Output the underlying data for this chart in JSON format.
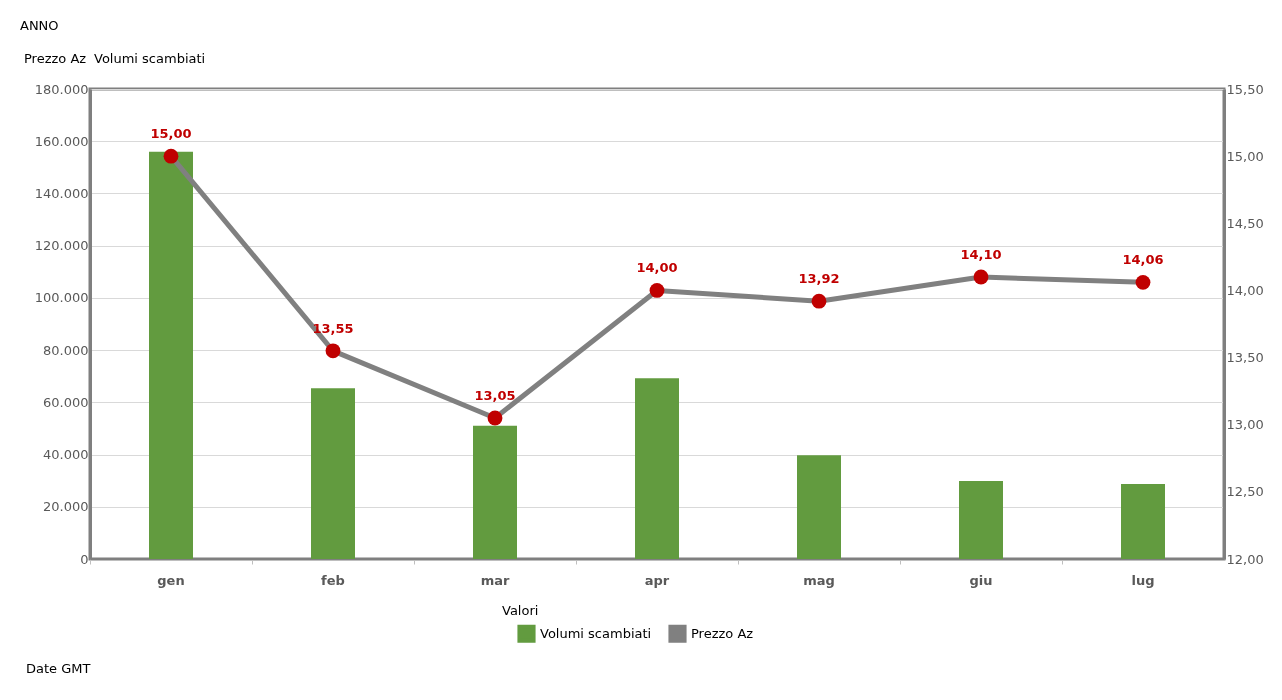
{
  "chart_data": {
    "type": "bar",
    "categories": [
      "gen",
      "feb",
      "mar",
      "apr",
      "mag",
      "giu",
      "lug"
    ],
    "series": [
      {
        "name": "Volumi scambiati",
        "color": "#629b3f",
        "values": [
          156000,
          65400,
          51000,
          69200,
          39700,
          29900,
          28700
        ]
      },
      {
        "name": "Prezzo Az",
        "type": "line",
        "axis": "y2",
        "color": "#808080",
        "colors": [
          "#c00000",
          "#c00000",
          "#c00000",
          "#c00000",
          "#c00000",
          "#c00000",
          "#c00000"
        ],
        "values": [
          15.0,
          13.55,
          13.05,
          14.0,
          13.92,
          14.1,
          14.06
        ],
        "value_labels": [
          "15,00",
          "13,55",
          "13,05",
          "14,00",
          "13,92",
          "14,10",
          "14,06"
        ]
      }
    ],
    "ylim": [
      0,
      180000
    ],
    "yticks": [
      0,
      {
        "value": 20000,
        "label": "20.000"
      },
      {
        "value": 40000,
        "label": "40.000"
      },
      {
        "value": 60000,
        "label": "60.000"
      },
      {
        "value": 80000,
        "label": "80.000"
      },
      {
        "value": 100000,
        "label": "100.000"
      },
      {
        "value": 120000,
        "label": "120.000"
      },
      {
        "value": 140000,
        "label": "140.000"
      },
      {
        "value": 160000,
        "label": "160.000"
      },
      {
        "value": 180000,
        "label": "180.000"
      }
    ],
    "y2lim": [
      12,
      15.5
    ],
    "y2ticks": [
      {
        "value": 12,
        "label": "12,00"
      },
      {
        "value": 12.5,
        "label": "12,50"
      },
      {
        "value": 13,
        "label": "13,00"
      },
      {
        "value": 13.5,
        "label": "13,50"
      },
      {
        "value": 14,
        "label": "14,00"
      },
      {
        "value": 14.5,
        "label": "14,50"
      },
      {
        "value": 15,
        "label": "15,00"
      },
      {
        "value": 15.5,
        "label": "15,50"
      }
    ],
    "grid": "y",
    "legend": "bottom",
    "marker": "circle",
    "annotations": [
      "ANNO",
      "Prezzo Az",
      "Volumi scambiati",
      "Valori",
      "Date GMT"
    ]
  }
}
